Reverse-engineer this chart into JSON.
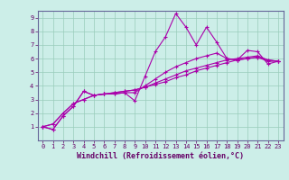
{
  "title": "",
  "xlabel": "Windchill (Refroidissement éolien,°C)",
  "ylabel": "",
  "background_color": "#cceee8",
  "line_color": "#aa00aa",
  "grid_color": "#99ccbb",
  "axis_color": "#660066",
  "spine_color": "#666699",
  "xlim": [
    -0.5,
    23.5
  ],
  "ylim": [
    0,
    9.5
  ],
  "xticks": [
    0,
    1,
    2,
    3,
    4,
    5,
    6,
    7,
    8,
    9,
    10,
    11,
    12,
    13,
    14,
    15,
    16,
    17,
    18,
    19,
    20,
    21,
    22,
    23
  ],
  "yticks": [
    1,
    2,
    3,
    4,
    5,
    6,
    7,
    8,
    9
  ],
  "series": [
    [
      1.0,
      0.8,
      1.8,
      2.5,
      3.6,
      3.3,
      3.4,
      3.4,
      3.5,
      2.9,
      4.7,
      6.5,
      7.6,
      9.3,
      8.3,
      7.0,
      8.3,
      7.2,
      6.0,
      5.9,
      6.6,
      6.5,
      5.6,
      5.8
    ],
    [
      1.0,
      0.8,
      1.8,
      2.5,
      3.6,
      3.3,
      3.4,
      3.4,
      3.5,
      3.5,
      4.0,
      4.5,
      5.0,
      5.4,
      5.7,
      6.0,
      6.2,
      6.4,
      6.0,
      5.9,
      6.0,
      6.1,
      5.8,
      5.8
    ],
    [
      1.0,
      1.2,
      2.0,
      2.7,
      3.0,
      3.3,
      3.4,
      3.5,
      3.6,
      3.7,
      3.9,
      4.1,
      4.3,
      4.6,
      4.8,
      5.1,
      5.3,
      5.5,
      5.7,
      5.9,
      6.0,
      6.1,
      5.9,
      5.8
    ],
    [
      1.0,
      1.2,
      2.0,
      2.7,
      3.0,
      3.3,
      3.4,
      3.5,
      3.6,
      3.7,
      3.9,
      4.2,
      4.5,
      4.8,
      5.1,
      5.3,
      5.5,
      5.7,
      5.9,
      6.0,
      6.1,
      6.2,
      5.9,
      5.8
    ]
  ],
  "marker": "+",
  "markersize": 3,
  "linewidth": 0.8,
  "tick_fontsize": 5,
  "label_fontsize": 6
}
